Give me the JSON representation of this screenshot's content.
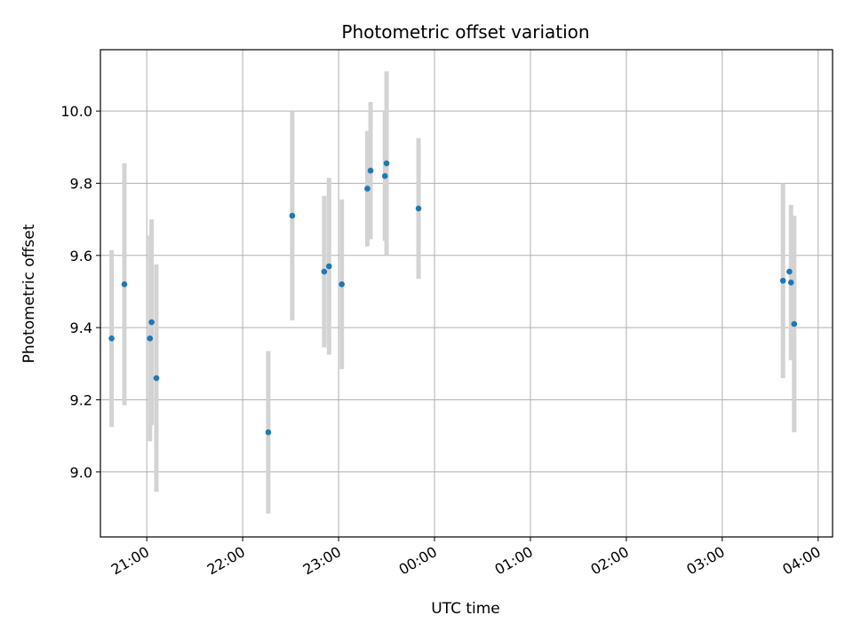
{
  "chart_data": {
    "type": "scatter",
    "title": "Photometric offset variation",
    "xlabel": "UTC time",
    "ylabel": "Photometric offset",
    "x_unit": "UTC time (hh:mm), night crossing midnight",
    "xlim": [
      "20:31",
      "04:09"
    ],
    "ylim": [
      8.82,
      10.17
    ],
    "x_ticks": [
      "21:00",
      "22:00",
      "23:00",
      "00:00",
      "01:00",
      "02:00",
      "03:00",
      "04:00"
    ],
    "y_ticks": [
      "9.0",
      "9.2",
      "9.4",
      "9.6",
      "9.8",
      "10.0"
    ],
    "grid": true,
    "marker_color": "#1f77b4",
    "errorbar_color": "#d3d3d3",
    "points": [
      {
        "x": "20:38",
        "y": 9.37,
        "yerr": 0.245
      },
      {
        "x": "20:46",
        "y": 9.52,
        "yerr": 0.335
      },
      {
        "x": "21:02",
        "y": 9.37,
        "yerr": 0.285
      },
      {
        "x": "21:03",
        "y": 9.415,
        "yerr": 0.285
      },
      {
        "x": "21:06",
        "y": 9.26,
        "yerr": 0.315
      },
      {
        "x": "22:16",
        "y": 9.11,
        "yerr": 0.225
      },
      {
        "x": "22:31",
        "y": 9.71,
        "yerr": 0.29
      },
      {
        "x": "22:51",
        "y": 9.555,
        "yerr": 0.21
      },
      {
        "x": "22:54",
        "y": 9.57,
        "yerr": 0.245
      },
      {
        "x": "23:02",
        "y": 9.52,
        "yerr": 0.235
      },
      {
        "x": "23:18",
        "y": 9.785,
        "yerr": 0.16
      },
      {
        "x": "23:20",
        "y": 9.835,
        "yerr": 0.19
      },
      {
        "x": "23:29",
        "y": 9.82,
        "yerr": 0.18
      },
      {
        "x": "23:30",
        "y": 9.855,
        "yerr": 0.255
      },
      {
        "x": "23:50",
        "y": 9.73,
        "yerr": 0.195
      },
      {
        "x": "03:38",
        "y": 9.53,
        "yerr": 0.27
      },
      {
        "x": "03:42",
        "y": 9.555,
        "yerr": 0.0
      },
      {
        "x": "03:43",
        "y": 9.525,
        "yerr": 0.215
      },
      {
        "x": "03:45",
        "y": 9.41,
        "yerr": 0.3
      }
    ]
  }
}
